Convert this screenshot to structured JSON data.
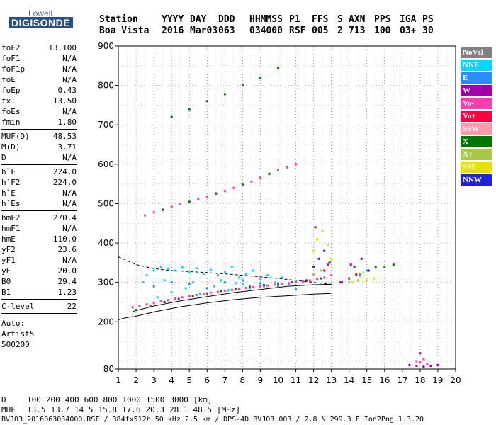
{
  "logo": {
    "top": "Lowell",
    "bottom": "DIGISONDE"
  },
  "header": {
    "cols": [
      {
        "label": "Station",
        "value": "Boa Vista"
      },
      {
        "label": "YYYY",
        "value": "2016"
      },
      {
        "label": "DAY",
        "value": "Mar03"
      },
      {
        "label": "DDD",
        "value": "063"
      },
      {
        "label": "HHMMSS",
        "value": "034000"
      },
      {
        "label": "P1",
        "value": "RSF"
      },
      {
        "label": "FFS",
        "value": "005"
      },
      {
        "label": "S",
        "value": "2"
      },
      {
        "label": "AXN",
        "value": "713"
      },
      {
        "label": "PPS",
        "value": "100"
      },
      {
        "label": "IGA",
        "value": "03+"
      },
      {
        "label": "PS",
        "value": "30"
      }
    ]
  },
  "parameters": [
    [
      {
        "k": "foF2",
        "v": "13.100"
      },
      {
        "k": "foF1",
        "v": "N/A"
      },
      {
        "k": "foF1p",
        "v": "N/A"
      },
      {
        "k": "foE",
        "v": "N/A"
      },
      {
        "k": "foEp",
        "v": "0.43"
      },
      {
        "k": "fxI",
        "v": "13.50"
      },
      {
        "k": "foEs",
        "v": "N/A"
      },
      {
        "k": "fmin",
        "v": "1.80"
      }
    ],
    [
      {
        "k": "MUF(D)",
        "v": "48.53"
      },
      {
        "k": "M(D)",
        "v": "3.71"
      },
      {
        "k": "D",
        "v": "N/A"
      }
    ],
    [
      {
        "k": "h`F",
        "v": "224.0"
      },
      {
        "k": "h`F2",
        "v": "224.0"
      },
      {
        "k": "h`E",
        "v": "N/A"
      },
      {
        "k": "h`Es",
        "v": "N/A"
      }
    ],
    [
      {
        "k": "hmF2",
        "v": "270.4"
      },
      {
        "k": "hmF1",
        "v": "N/A"
      },
      {
        "k": "hmE",
        "v": "110.0"
      },
      {
        "k": "yF2",
        "v": "23.6"
      },
      {
        "k": "yF1",
        "v": "N/A"
      },
      {
        "k": "yE",
        "v": "20.0"
      },
      {
        "k": "B0",
        "v": "29.4"
      },
      {
        "k": "B1",
        "v": "1.23"
      }
    ],
    [
      {
        "k": "C-level",
        "v": "22"
      }
    ]
  ],
  "auto": {
    "label": "Auto:",
    "software": "Artist5",
    "version": "500200"
  },
  "legend": [
    {
      "name": "NoVal",
      "color": "#808080"
    },
    {
      "name": "NNE",
      "color": "#00d8ff"
    },
    {
      "name": "E",
      "color": "#2a8cff"
    },
    {
      "name": "W",
      "color": "#a000a8"
    },
    {
      "name": "Vo-",
      "color": "#ff3cb0"
    },
    {
      "name": "Vo+",
      "color": "#ff0040"
    },
    {
      "name": "SSW",
      "color": "#ff9aa8"
    },
    {
      "name": "X-",
      "color": "#007800"
    },
    {
      "name": "X+",
      "color": "#a8c848"
    },
    {
      "name": "SSE",
      "color": "#e8e000"
    },
    {
      "name": "NNW",
      "color": "#2020e0"
    }
  ],
  "footer": {
    "line1_label": "D",
    "line1_values": [
      "100",
      "200",
      "400",
      "600",
      "800",
      "1000",
      "1500",
      "3000",
      "[km]"
    ],
    "line2_label": "MUF",
    "line2_values": [
      "13.5",
      "13.7",
      "14.5",
      "15.8",
      "17.6",
      "20.3",
      "28.1",
      "48.5",
      "[MHz]"
    ],
    "line3": "BVJ03_2016063034000.RSF / 384fx512h 50 kHz 2.5 km / DPS-4D BVJ03 003 / 2.8 N 299.3 E Ion2Png 1.3.20"
  },
  "chart_data": {
    "type": "scatter",
    "title": "",
    "xlabel": "",
    "ylabel": "",
    "xlim": [
      1,
      20
    ],
    "ylim": [
      80,
      900
    ],
    "x_ticks": [
      1,
      2,
      3,
      4,
      5,
      6,
      7,
      8,
      9,
      10,
      11,
      12,
      13,
      14,
      15,
      16,
      17,
      18,
      19,
      20
    ],
    "y_ticks": [
      80,
      200,
      300,
      400,
      500,
      600,
      700,
      800,
      900
    ],
    "grid": true,
    "series": [
      {
        "name": "NNE",
        "color": "#00d8ff",
        "points": [
          [
            2.6,
            318
          ],
          [
            3.0,
            330
          ],
          [
            3.4,
            340
          ],
          [
            3.8,
            335
          ],
          [
            4.2,
            330
          ],
          [
            4.6,
            338
          ],
          [
            5.0,
            325
          ],
          [
            5.4,
            336
          ],
          [
            5.8,
            322
          ],
          [
            6.2,
            332
          ],
          [
            6.6,
            318
          ],
          [
            7.0,
            326
          ],
          [
            7.4,
            340
          ],
          [
            7.8,
            312
          ],
          [
            8.2,
            322
          ],
          [
            8.6,
            330
          ],
          [
            9.0,
            308
          ],
          [
            9.4,
            318
          ],
          [
            9.8,
            300
          ],
          [
            10.2,
            312
          ],
          [
            10.6,
            295
          ],
          [
            3.2,
            262
          ],
          [
            4.0,
            275
          ],
          [
            4.8,
            285
          ],
          [
            5.6,
            270
          ],
          [
            6.4,
            290
          ],
          [
            7.2,
            280
          ],
          [
            8.0,
            295
          ],
          [
            2.4,
            300
          ],
          [
            3.6,
            305
          ],
          [
            5.2,
            300
          ],
          [
            6.8,
            305
          ],
          [
            7.6,
            298
          ],
          [
            8.4,
            285
          ],
          [
            9.2,
            290
          ]
        ]
      },
      {
        "name": "E",
        "color": "#2a8cff",
        "points": [
          [
            3.0,
            290
          ],
          [
            4.0,
            300
          ],
          [
            5.0,
            295
          ],
          [
            6.0,
            285
          ],
          [
            7.0,
            300
          ],
          [
            8.0,
            305
          ],
          [
            9.0,
            298
          ],
          [
            10.0,
            290
          ],
          [
            11.0,
            282
          ],
          [
            14.6,
            320
          ],
          [
            15.0,
            330
          ]
        ]
      },
      {
        "name": "Vo-",
        "color": "#ff3cb0",
        "points": [
          [
            1.8,
            237
          ],
          [
            2.2,
            240
          ],
          [
            2.6,
            244
          ],
          [
            3.0,
            248
          ],
          [
            3.4,
            252
          ],
          [
            3.8,
            255
          ],
          [
            4.2,
            259
          ],
          [
            4.6,
            262
          ],
          [
            5.0,
            265
          ],
          [
            5.4,
            268
          ],
          [
            5.8,
            271
          ],
          [
            6.2,
            274
          ],
          [
            6.6,
            276
          ],
          [
            7.0,
            279
          ],
          [
            7.4,
            281
          ],
          [
            7.8,
            284
          ],
          [
            8.2,
            286
          ],
          [
            8.6,
            288
          ],
          [
            9.0,
            290
          ],
          [
            9.4,
            292
          ],
          [
            9.8,
            294
          ],
          [
            10.2,
            296
          ],
          [
            10.6,
            298
          ],
          [
            11.0,
            300
          ],
          [
            11.4,
            302
          ],
          [
            11.8,
            305
          ],
          [
            12.2,
            308
          ],
          [
            12.6,
            312
          ],
          [
            13.0,
            318
          ],
          [
            2.5,
            470
          ],
          [
            3.0,
            478
          ],
          [
            3.5,
            485
          ],
          [
            4.0,
            492
          ],
          [
            4.5,
            499
          ],
          [
            5.0,
            505
          ],
          [
            5.5,
            512
          ],
          [
            6.0,
            518
          ],
          [
            6.5,
            525
          ],
          [
            7.0,
            532
          ],
          [
            7.5,
            540
          ],
          [
            8.0,
            548
          ],
          [
            8.5,
            556
          ],
          [
            9.0,
            566
          ],
          [
            9.5,
            575
          ],
          [
            10.0,
            585
          ],
          [
            10.5,
            592
          ],
          [
            11.0,
            600
          ],
          [
            18.0,
            98
          ],
          [
            18.2,
            105
          ],
          [
            18.4,
            92
          ],
          [
            17.8,
            100
          ]
        ]
      },
      {
        "name": "Vo+",
        "color": "#ff0040",
        "points": [
          [
            13.5,
            300
          ],
          [
            14.0,
            310
          ],
          [
            14.4,
            320
          ],
          [
            12.6,
            330
          ],
          [
            12.8,
            345
          ]
        ]
      },
      {
        "name": "X-",
        "color": "#007800",
        "points": [
          [
            2.0,
            230
          ],
          [
            2.8,
            240
          ],
          [
            3.6,
            250
          ],
          [
            4.4,
            258
          ],
          [
            5.2,
            265
          ],
          [
            6.0,
            272
          ],
          [
            6.8,
            278
          ],
          [
            7.6,
            284
          ],
          [
            8.4,
            289
          ],
          [
            9.2,
            293
          ],
          [
            10.0,
            297
          ],
          [
            10.8,
            300
          ],
          [
            11.6,
            305
          ],
          [
            12.4,
            310
          ],
          [
            3.5,
            484
          ],
          [
            5.0,
            504
          ],
          [
            6.5,
            526
          ],
          [
            8.0,
            548
          ],
          [
            9.5,
            576
          ],
          [
            4.0,
            720
          ],
          [
            5.0,
            740
          ],
          [
            6.0,
            760
          ],
          [
            7.0,
            778
          ],
          [
            8.0,
            800
          ],
          [
            9.0,
            820
          ],
          [
            10.0,
            845
          ],
          [
            16.0,
            340
          ],
          [
            16.5,
            345
          ],
          [
            15.5,
            338
          ]
        ]
      },
      {
        "name": "X+",
        "color": "#a8c848",
        "points": [
          [
            12.0,
            320
          ],
          [
            12.4,
            330
          ],
          [
            14.0,
            300
          ],
          [
            14.5,
            305
          ]
        ]
      },
      {
        "name": "SSE",
        "color": "#e8e000",
        "points": [
          [
            12.0,
            380
          ],
          [
            12.2,
            410
          ],
          [
            12.5,
            430
          ],
          [
            12.8,
            395
          ],
          [
            13.0,
            360
          ],
          [
            14.2,
            300
          ],
          [
            14.6,
            315
          ],
          [
            15.0,
            305
          ],
          [
            15.4,
            310
          ],
          [
            14.8,
            325
          ]
        ]
      },
      {
        "name": "NNW",
        "color": "#2020e0",
        "points": [
          [
            12.0,
            340
          ],
          [
            12.3,
            360
          ],
          [
            12.6,
            380
          ],
          [
            12.9,
            350
          ],
          [
            14.3,
            340
          ],
          [
            14.7,
            360
          ],
          [
            15.1,
            330
          ]
        ]
      },
      {
        "name": "W",
        "color": "#a000a8",
        "points": [
          [
            17.4,
            90
          ],
          [
            17.8,
            88
          ],
          [
            18.2,
            86
          ],
          [
            18.6,
            88
          ],
          [
            19.0,
            90
          ],
          [
            18.0,
            120
          ],
          [
            12.1,
            440
          ],
          [
            13.6,
            300
          ],
          [
            14.1,
            345
          ]
        ]
      }
    ],
    "traces": [
      {
        "name": "profile-lower",
        "color": "#000",
        "points": [
          [
            1.8,
            212
          ],
          [
            3.0,
            225
          ],
          [
            4.5,
            238
          ],
          [
            6.0,
            248
          ],
          [
            7.5,
            256
          ],
          [
            9.0,
            262
          ],
          [
            10.5,
            266
          ],
          [
            12.0,
            270
          ],
          [
            13.0,
            272
          ]
        ]
      },
      {
        "name": "profile-upper",
        "color": "#000",
        "points": [
          [
            1.8,
            226
          ],
          [
            3.0,
            240
          ],
          [
            4.5,
            253
          ],
          [
            6.0,
            264
          ],
          [
            7.5,
            274
          ],
          [
            9.0,
            282
          ],
          [
            10.5,
            290
          ],
          [
            12.0,
            294
          ],
          [
            13.0,
            295
          ]
        ]
      },
      {
        "name": "profile-lower-left",
        "color": "#000",
        "points": [
          [
            1.0,
            205
          ],
          [
            1.4,
            210
          ],
          [
            1.8,
            213
          ]
        ]
      },
      {
        "name": "profile-top",
        "color": "#000",
        "dashed": true,
        "points": [
          [
            1.0,
            365
          ],
          [
            2.0,
            345
          ],
          [
            3.0,
            335
          ],
          [
            4.0,
            330
          ],
          [
            6.0,
            325
          ],
          [
            8.0,
            318
          ],
          [
            10.0,
            310
          ],
          [
            12.0,
            300
          ],
          [
            13.0,
            295
          ]
        ]
      }
    ]
  }
}
